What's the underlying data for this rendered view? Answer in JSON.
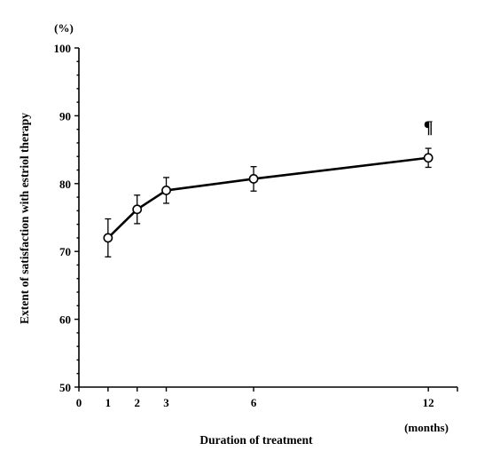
{
  "chart_data": {
    "type": "line",
    "title": "",
    "xlabel": "Duration of treatment",
    "ylabel": "Extent of satisfaction with estriol therapy",
    "x_unit": "(months)",
    "y_unit": "(%)",
    "xlim": [
      0,
      13
    ],
    "ylim": [
      50,
      100
    ],
    "x_ticks": [
      0,
      1,
      2,
      3,
      6,
      12
    ],
    "x_tick_labels": [
      "0",
      "1",
      "2",
      "3",
      "6",
      "12"
    ],
    "y_ticks": [
      50,
      60,
      70,
      80,
      90,
      100
    ],
    "y_tick_labels": [
      "50",
      "60",
      "70",
      "80",
      "90",
      "100"
    ],
    "grid": false,
    "series": [
      {
        "x": [
          1,
          2,
          3,
          6,
          12
        ],
        "y": [
          72,
          76.2,
          79,
          80.7,
          83.8
        ],
        "error": [
          2.8,
          2.1,
          1.9,
          1.8,
          1.4
        ]
      }
    ],
    "annotations": [
      {
        "text": "¶",
        "x": 12,
        "y": 87.5
      }
    ]
  }
}
